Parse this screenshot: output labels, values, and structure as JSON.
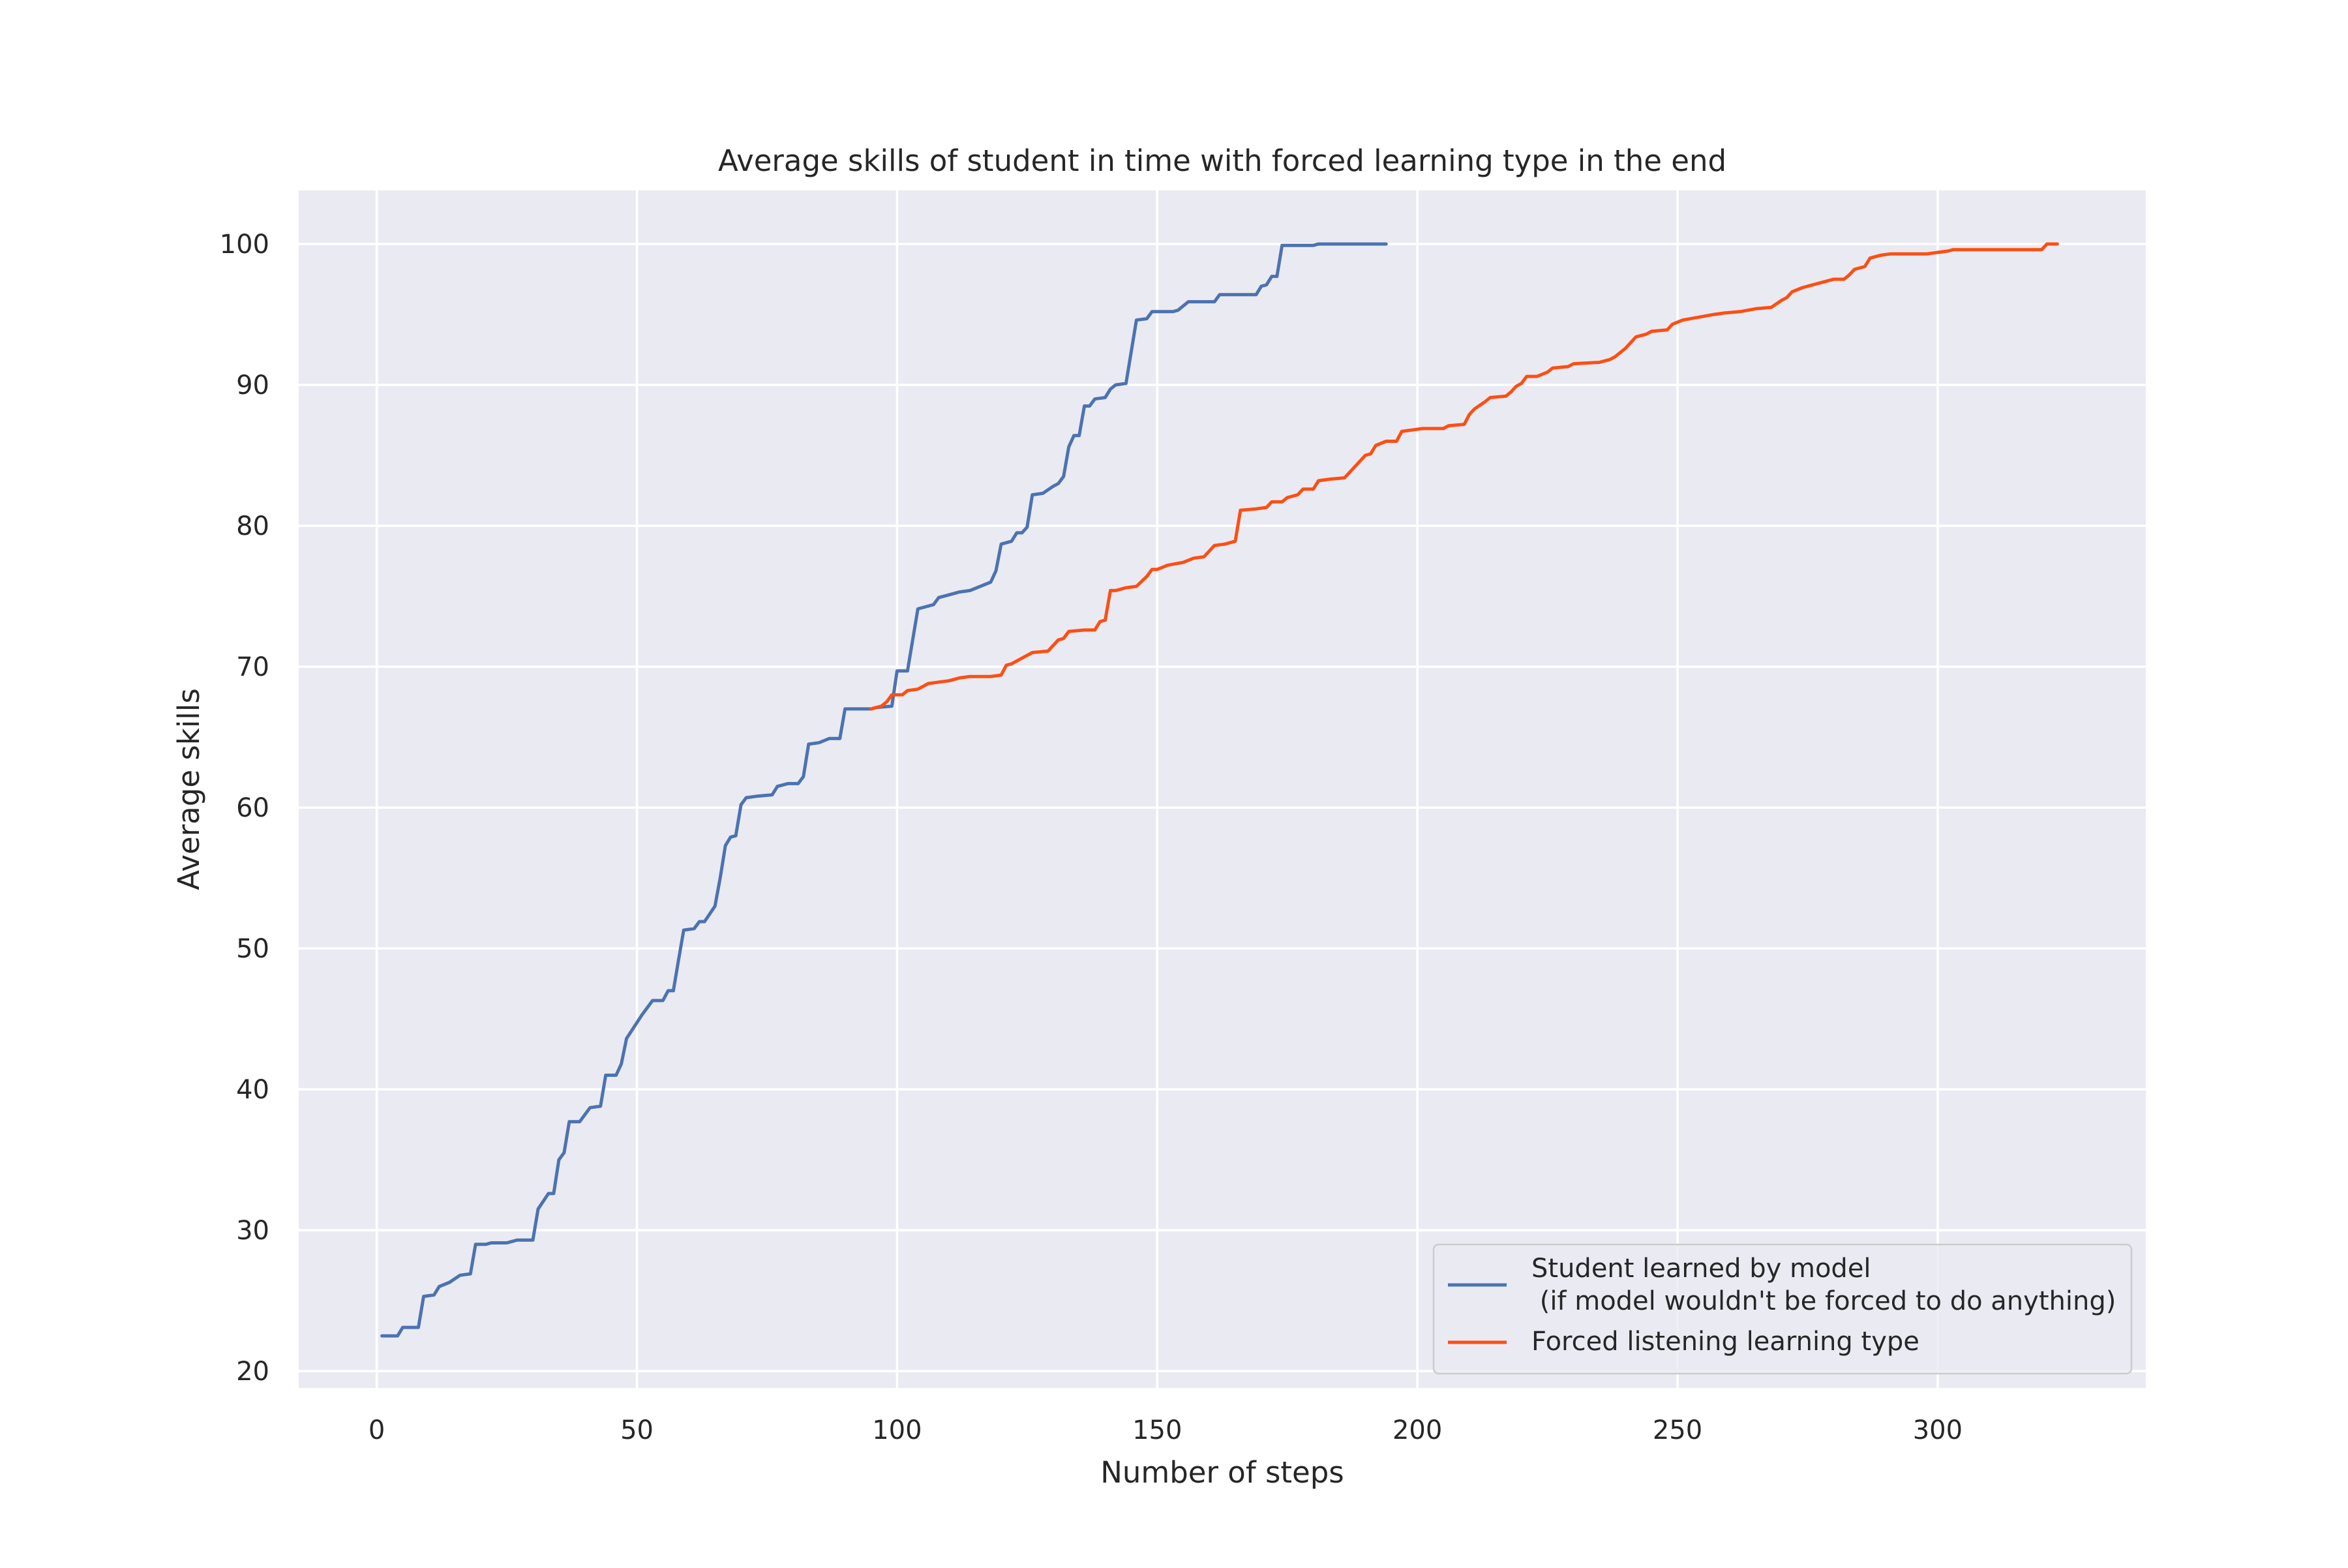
{
  "chart_data": {
    "type": "line",
    "title": "Average skills of student in time with forced learning type in the end",
    "xlabel": "Number of steps",
    "ylabel": "Average skills",
    "xlim": [
      -15,
      340
    ],
    "ylim": [
      18.8,
      103.8
    ],
    "xticks": [
      0,
      50,
      100,
      150,
      200,
      250,
      300
    ],
    "yticks": [
      20,
      30,
      40,
      50,
      60,
      70,
      80,
      90,
      100
    ],
    "grid": true,
    "legend_position": "bottom-right",
    "background_color": "#EAEAF2",
    "series": [
      {
        "name": "Student learned by model\n (if model wouldn't be forced to do anything)",
        "color": "#4C72B0",
        "points": [
          [
            1,
            22.5
          ],
          [
            4,
            22.5
          ],
          [
            5,
            23.1
          ],
          [
            8,
            23.1
          ],
          [
            9,
            25.3
          ],
          [
            11,
            25.4
          ],
          [
            12,
            26.0
          ],
          [
            14,
            26.3
          ],
          [
            16,
            26.8
          ],
          [
            18,
            26.9
          ],
          [
            19,
            29.0
          ],
          [
            21,
            29.0
          ],
          [
            22,
            29.1
          ],
          [
            25,
            29.1
          ],
          [
            27,
            29.3
          ],
          [
            30,
            29.3
          ],
          [
            31,
            31.5
          ],
          [
            33,
            32.6
          ],
          [
            34,
            32.6
          ],
          [
            35,
            35.0
          ],
          [
            36,
            35.5
          ],
          [
            37,
            37.7
          ],
          [
            39,
            37.7
          ],
          [
            41,
            38.7
          ],
          [
            43,
            38.8
          ],
          [
            44,
            41.0
          ],
          [
            46,
            41.0
          ],
          [
            47,
            41.8
          ],
          [
            48,
            43.6
          ],
          [
            51,
            45.3
          ],
          [
            53,
            46.3
          ],
          [
            55,
            46.3
          ],
          [
            56,
            47.0
          ],
          [
            57,
            47.0
          ],
          [
            58,
            49.2
          ],
          [
            59,
            51.3
          ],
          [
            61,
            51.4
          ],
          [
            62,
            51.9
          ],
          [
            63,
            51.9
          ],
          [
            65,
            53.0
          ],
          [
            66,
            55.0
          ],
          [
            67,
            57.3
          ],
          [
            68,
            57.9
          ],
          [
            69,
            58.0
          ],
          [
            70,
            60.2
          ],
          [
            71,
            60.7
          ],
          [
            73,
            60.8
          ],
          [
            76,
            60.9
          ],
          [
            77,
            61.5
          ],
          [
            79,
            61.7
          ],
          [
            81,
            61.7
          ],
          [
            82,
            62.2
          ],
          [
            83,
            64.5
          ],
          [
            85,
            64.6
          ],
          [
            87,
            64.9
          ],
          [
            89,
            64.9
          ],
          [
            90,
            67.0
          ],
          [
            95,
            67.0
          ],
          [
            96,
            67.1
          ],
          [
            99,
            67.2
          ],
          [
            100,
            69.7
          ],
          [
            102,
            69.7
          ],
          [
            104,
            74.1
          ],
          [
            107,
            74.4
          ],
          [
            108,
            74.9
          ],
          [
            110,
            75.1
          ],
          [
            112,
            75.3
          ],
          [
            114,
            75.4
          ],
          [
            118,
            76.0
          ],
          [
            119,
            76.8
          ],
          [
            120,
            78.7
          ],
          [
            122,
            78.9
          ],
          [
            123,
            79.5
          ],
          [
            124,
            79.5
          ],
          [
            125,
            79.9
          ],
          [
            126,
            82.2
          ],
          [
            128,
            82.3
          ],
          [
            130,
            82.8
          ],
          [
            131,
            83.0
          ],
          [
            132,
            83.5
          ],
          [
            133,
            85.6
          ],
          [
            134,
            86.4
          ],
          [
            135,
            86.4
          ],
          [
            136,
            88.5
          ],
          [
            137,
            88.5
          ],
          [
            138,
            89.0
          ],
          [
            140,
            89.1
          ],
          [
            141,
            89.7
          ],
          [
            142,
            90.0
          ],
          [
            144,
            90.1
          ],
          [
            146,
            94.6
          ],
          [
            148,
            94.7
          ],
          [
            149,
            95.2
          ],
          [
            153,
            95.2
          ],
          [
            154,
            95.3
          ],
          [
            156,
            95.9
          ],
          [
            161,
            95.9
          ],
          [
            162,
            96.4
          ],
          [
            169,
            96.4
          ],
          [
            170,
            97.0
          ],
          [
            171,
            97.1
          ],
          [
            172,
            97.7
          ],
          [
            173,
            97.7
          ],
          [
            174,
            99.9
          ],
          [
            180,
            99.9
          ],
          [
            181,
            100.0
          ],
          [
            194,
            100.0
          ]
        ]
      },
      {
        "name": "Forced listening learning type",
        "color": "#FC4F13",
        "points": [
          [
            95,
            67.0
          ],
          [
            97,
            67.2
          ],
          [
            98,
            67.5
          ],
          [
            99,
            68.0
          ],
          [
            101,
            68.0
          ],
          [
            102,
            68.3
          ],
          [
            104,
            68.4
          ],
          [
            106,
            68.8
          ],
          [
            108,
            68.9
          ],
          [
            110,
            69.0
          ],
          [
            112,
            69.2
          ],
          [
            114,
            69.3
          ],
          [
            118,
            69.3
          ],
          [
            120,
            69.4
          ],
          [
            121,
            70.1
          ],
          [
            122,
            70.2
          ],
          [
            124,
            70.6
          ],
          [
            126,
            71.0
          ],
          [
            129,
            71.1
          ],
          [
            131,
            71.9
          ],
          [
            132,
            72.0
          ],
          [
            133,
            72.5
          ],
          [
            136,
            72.6
          ],
          [
            138,
            72.6
          ],
          [
            139,
            73.2
          ],
          [
            140,
            73.3
          ],
          [
            141,
            75.4
          ],
          [
            142,
            75.4
          ],
          [
            144,
            75.6
          ],
          [
            146,
            75.7
          ],
          [
            148,
            76.4
          ],
          [
            149,
            76.9
          ],
          [
            150,
            76.9
          ],
          [
            152,
            77.2
          ],
          [
            155,
            77.4
          ],
          [
            157,
            77.7
          ],
          [
            159,
            77.8
          ],
          [
            161,
            78.6
          ],
          [
            163,
            78.7
          ],
          [
            165,
            78.9
          ],
          [
            166,
            81.1
          ],
          [
            169,
            81.2
          ],
          [
            171,
            81.3
          ],
          [
            172,
            81.7
          ],
          [
            174,
            81.7
          ],
          [
            175,
            82.0
          ],
          [
            177,
            82.2
          ],
          [
            178,
            82.6
          ],
          [
            180,
            82.6
          ],
          [
            181,
            83.2
          ],
          [
            183,
            83.3
          ],
          [
            186,
            83.4
          ],
          [
            188,
            84.2
          ],
          [
            190,
            85.0
          ],
          [
            191,
            85.1
          ],
          [
            192,
            85.7
          ],
          [
            194,
            86.0
          ],
          [
            196,
            86.0
          ],
          [
            197,
            86.7
          ],
          [
            199,
            86.8
          ],
          [
            201,
            86.9
          ],
          [
            205,
            86.9
          ],
          [
            206,
            87.1
          ],
          [
            209,
            87.2
          ],
          [
            210,
            87.9
          ],
          [
            211,
            88.3
          ],
          [
            213,
            88.8
          ],
          [
            214,
            89.1
          ],
          [
            217,
            89.2
          ],
          [
            218,
            89.5
          ],
          [
            219,
            89.9
          ],
          [
            220,
            90.1
          ],
          [
            221,
            90.6
          ],
          [
            223,
            90.6
          ],
          [
            225,
            90.9
          ],
          [
            226,
            91.2
          ],
          [
            229,
            91.3
          ],
          [
            230,
            91.5
          ],
          [
            235,
            91.6
          ],
          [
            237,
            91.8
          ],
          [
            238,
            92.0
          ],
          [
            239,
            92.3
          ],
          [
            240,
            92.6
          ],
          [
            241,
            93.0
          ],
          [
            242,
            93.4
          ],
          [
            244,
            93.6
          ],
          [
            245,
            93.8
          ],
          [
            248,
            93.9
          ],
          [
            249,
            94.3
          ],
          [
            251,
            94.6
          ],
          [
            254,
            94.8
          ],
          [
            257,
            95.0
          ],
          [
            259,
            95.1
          ],
          [
            262,
            95.2
          ],
          [
            265,
            95.4
          ],
          [
            268,
            95.5
          ],
          [
            270,
            96.0
          ],
          [
            271,
            96.2
          ],
          [
            272,
            96.6
          ],
          [
            274,
            96.9
          ],
          [
            276,
            97.1
          ],
          [
            278,
            97.3
          ],
          [
            280,
            97.5
          ],
          [
            282,
            97.5
          ],
          [
            283,
            97.8
          ],
          [
            284,
            98.2
          ],
          [
            286,
            98.4
          ],
          [
            287,
            99.0
          ],
          [
            289,
            99.2
          ],
          [
            291,
            99.3
          ],
          [
            298,
            99.3
          ],
          [
            300,
            99.4
          ],
          [
            302,
            99.5
          ],
          [
            303,
            99.6
          ],
          [
            320,
            99.6
          ],
          [
            321,
            100.0
          ],
          [
            323,
            100.0
          ]
        ]
      }
    ]
  }
}
